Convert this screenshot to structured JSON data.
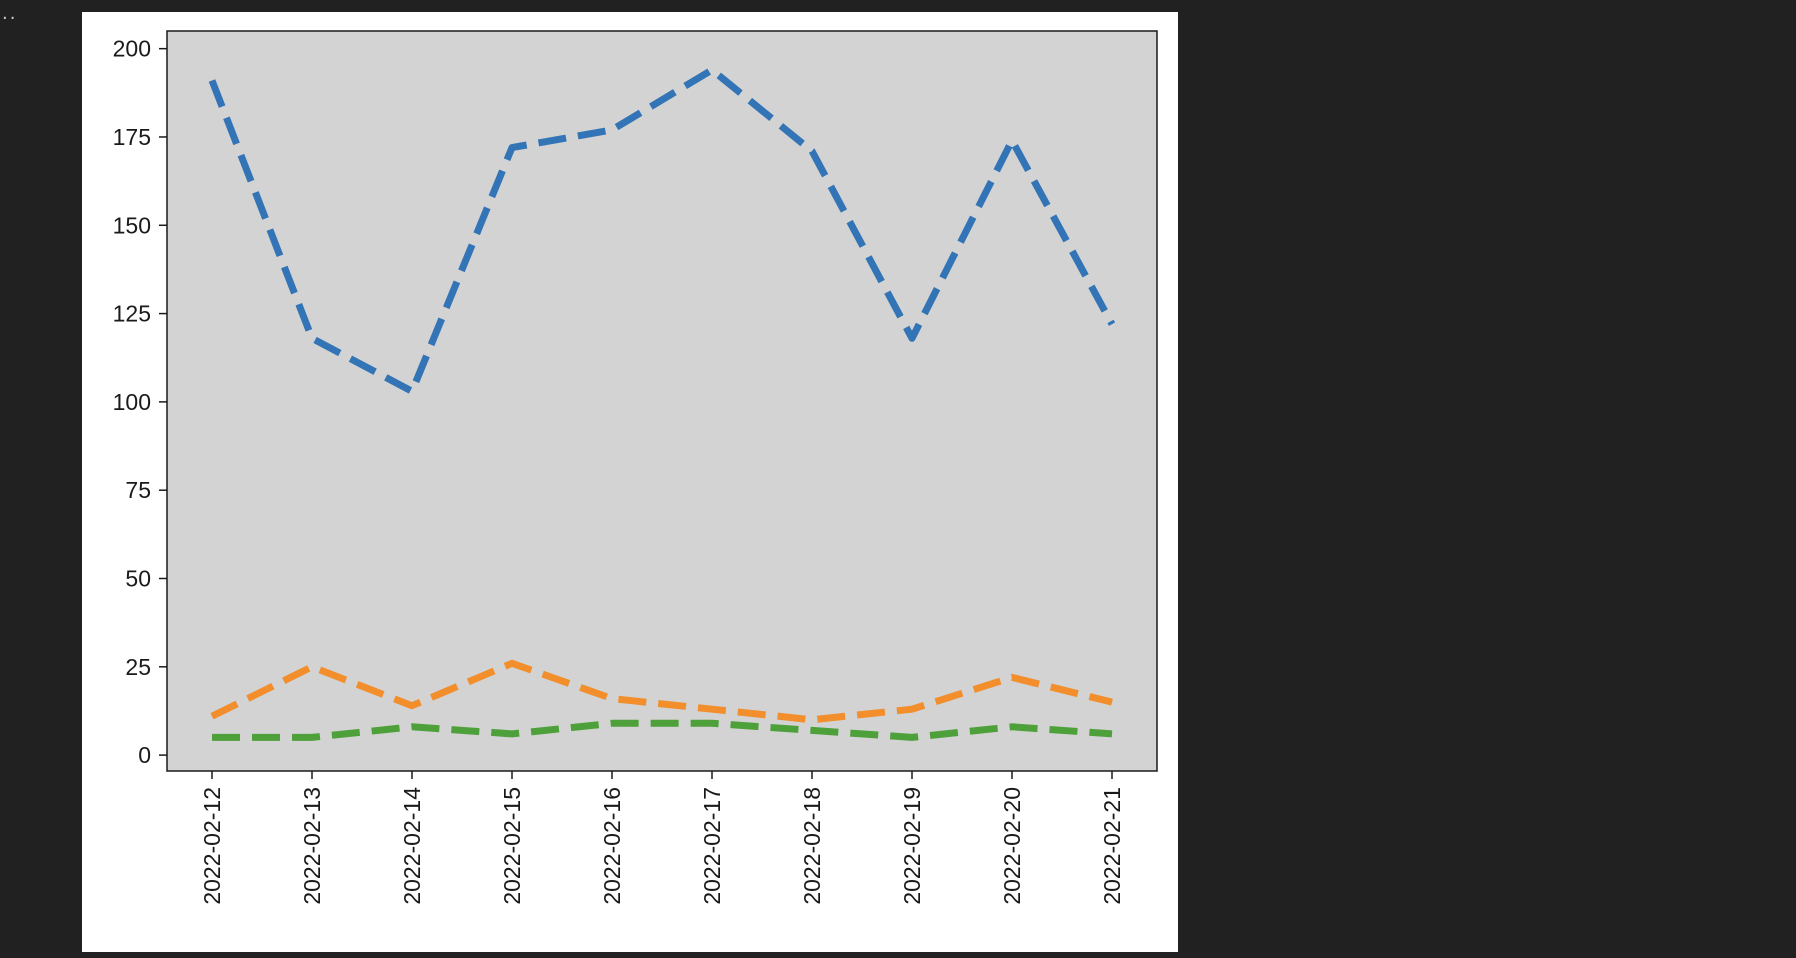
{
  "output": {
    "collapse_marker": "··"
  },
  "chart_data": {
    "type": "line",
    "title": "",
    "xlabel": "",
    "ylabel": "",
    "x": [
      "2022-02-12",
      "2022-02-13",
      "2022-02-14",
      "2022-02-15",
      "2022-02-16",
      "2022-02-17",
      "2022-02-18",
      "2022-02-19",
      "2022-02-20",
      "2022-02-21"
    ],
    "series": [
      {
        "values": [
          191,
          118,
          103,
          172,
          177,
          194,
          171,
          118,
          174,
          122
        ],
        "color": "#3274b5",
        "linestyle": "dashed"
      },
      {
        "values": [
          11,
          25,
          14,
          26,
          16,
          13,
          10,
          13,
          22,
          15
        ],
        "color": "#f28e2b",
        "linestyle": "dashed"
      },
      {
        "values": [
          5,
          5,
          8,
          6,
          9,
          9,
          7,
          5,
          8,
          6
        ],
        "color": "#4ea03a",
        "linestyle": "dashed"
      }
    ],
    "ylim": [
      -4.5,
      205
    ],
    "yticks": [
      0,
      25,
      50,
      75,
      100,
      125,
      150,
      175,
      200
    ],
    "plot_background": "#d3d3d3",
    "grid": false,
    "legend": "none"
  }
}
